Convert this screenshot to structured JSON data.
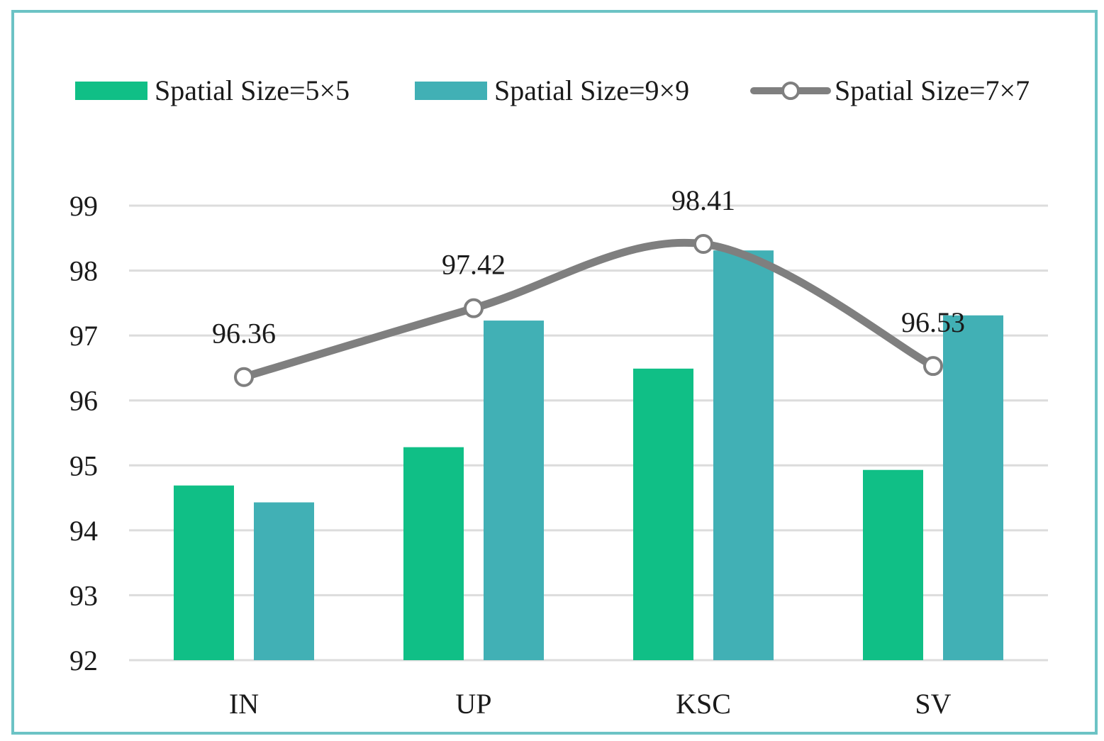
{
  "chart_data": {
    "type": "bar",
    "title": "",
    "xlabel": "",
    "ylabel": "",
    "ylim": [
      92,
      99
    ],
    "yticks": [
      92,
      93,
      94,
      95,
      96,
      97,
      98,
      99
    ],
    "grid": true,
    "legend_position": "top",
    "categories": [
      "IN",
      "UP",
      "KSC",
      "SV"
    ],
    "series": [
      {
        "name": "Spatial Size=5×5",
        "kind": "bar",
        "color": "#10bf86",
        "values": [
          94.69,
          95.28,
          96.49,
          94.93
        ]
      },
      {
        "name": "Spatial Size=9×9",
        "kind": "bar",
        "color": "#41b0b5",
        "values": [
          94.43,
          97.23,
          98.31,
          97.31
        ]
      },
      {
        "name": "Spatial Size=7×7",
        "kind": "line",
        "smooth": true,
        "color": "#7f7f7f",
        "values": [
          96.36,
          97.42,
          98.41,
          96.53
        ],
        "labels": [
          "96.36",
          "97.42",
          "98.41",
          "96.53"
        ]
      }
    ]
  }
}
